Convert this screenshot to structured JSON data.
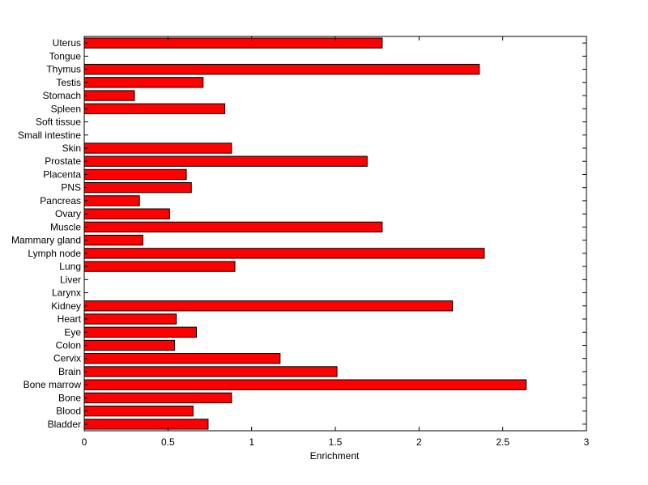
{
  "chart_data": {
    "type": "bar",
    "orientation": "horizontal",
    "title": "",
    "xlabel": "Enrichment",
    "ylabel": "",
    "xlim": [
      0,
      3
    ],
    "xticks": [
      "0",
      "0.5",
      "1",
      "1.5",
      "2",
      "2.5",
      "3"
    ],
    "grid": false,
    "legend": "none",
    "bar_color": "#ff0000",
    "bar_edge_color": "#000000",
    "categories": [
      "Uterus",
      "Tongue",
      "Thymus",
      "Testis",
      "Stomach",
      "Spleen",
      "Soft tissue",
      "Small intestine",
      "Skin",
      "Prostate",
      "Placenta",
      "PNS",
      "Pancreas",
      "Ovary",
      "Muscle",
      "Mammary gland",
      "Lymph node",
      "Lung",
      "Liver",
      "Larynx",
      "Kidney",
      "Heart",
      "Eye",
      "Colon",
      "Cervix",
      "Brain",
      "Bone marrow",
      "Bone",
      "Blood",
      "Bladder"
    ],
    "values": [
      1.78,
      0,
      2.36,
      0.71,
      0.3,
      0.84,
      0,
      0,
      0.88,
      1.69,
      0.61,
      0.64,
      0.33,
      0.51,
      1.78,
      0.35,
      2.39,
      0.9,
      0,
      0,
      2.2,
      0.55,
      0.67,
      0.54,
      1.17,
      1.51,
      2.64,
      0.88,
      0.65,
      0.74
    ]
  }
}
